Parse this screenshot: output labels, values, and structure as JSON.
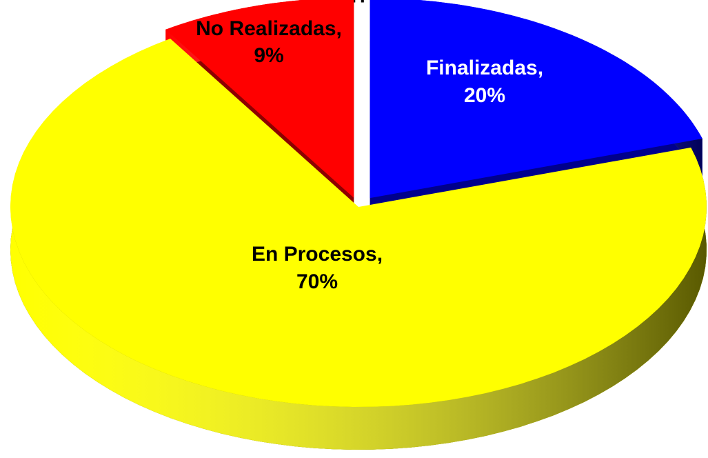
{
  "chart_data": {
    "type": "pie",
    "title": "ITQPJB",
    "categories": [
      "Finalizadas,",
      "En Procesos,",
      "No Realizadas,"
    ],
    "values": [
      20,
      70,
      9
    ],
    "value_labels": [
      "20%",
      "70%",
      "9%"
    ],
    "colors": [
      "#0000ff",
      "#ffff00",
      "#ff0000"
    ],
    "label_colors": [
      "#ffffff",
      "#000000",
      "#000000"
    ]
  }
}
